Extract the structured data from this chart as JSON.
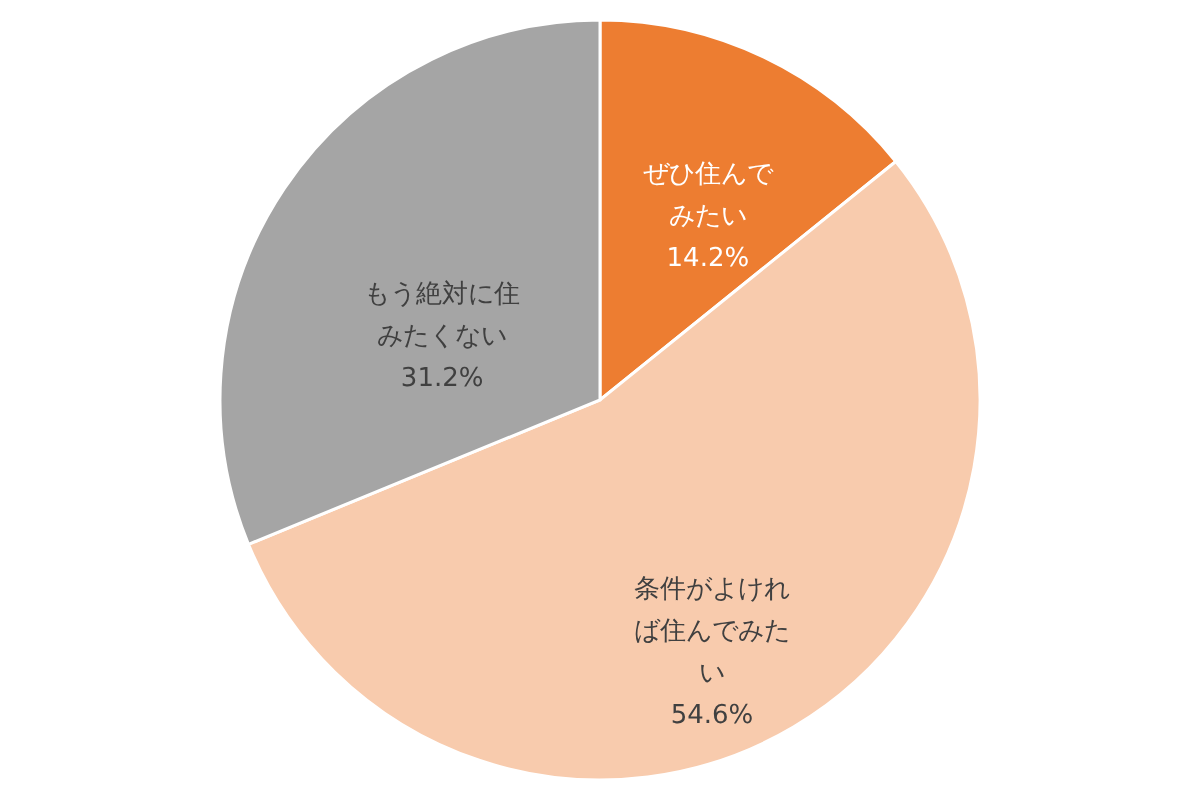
{
  "chart_data": {
    "type": "pie",
    "categories": [
      "ぜひ住んでみたい",
      "条件がよければ住んでみたい",
      "もう絶対に住みたくない"
    ],
    "values": [
      14.2,
      54.6,
      31.2
    ],
    "colors": [
      "#ed7d31",
      "#f8cbad",
      "#a5a5a5"
    ],
    "value_labels": [
      "14.2%",
      "54.6%",
      "31.2%"
    ]
  }
}
